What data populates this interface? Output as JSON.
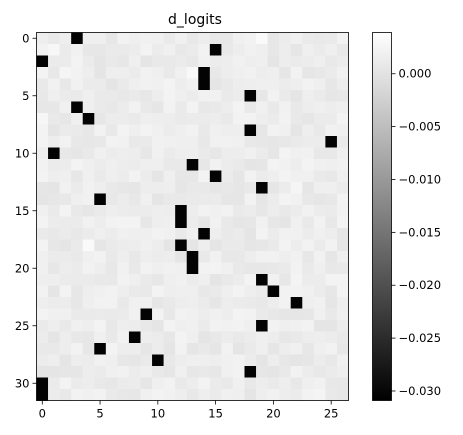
{
  "chart_data": {
    "type": "heatmap",
    "title": "d_logits",
    "rows": 32,
    "cols": 27,
    "colormap": "gray",
    "vmin": -0.0309,
    "vmax": 0.0039,
    "background_value_range": [
      -0.0012,
      0.0032
    ],
    "x_ticks": [
      0,
      5,
      10,
      15,
      20,
      25
    ],
    "y_ticks": [
      0,
      5,
      10,
      15,
      20,
      25,
      30
    ],
    "colorbar_ticks": [
      0.0,
      -0.005,
      -0.01,
      -0.015,
      -0.02,
      -0.025,
      -0.03
    ],
    "colorbar_tick_labels": [
      "0.000",
      "−0.005",
      "−0.010",
      "−0.015",
      "−0.020",
      "−0.025",
      "−0.030"
    ],
    "min_cells": [
      {
        "row": 0,
        "col": 3,
        "value": -0.0305
      },
      {
        "row": 1,
        "col": 15,
        "value": -0.0305
      },
      {
        "row": 2,
        "col": 0,
        "value": -0.0305
      },
      {
        "row": 3,
        "col": 14,
        "value": -0.0305
      },
      {
        "row": 4,
        "col": 14,
        "value": -0.0305
      },
      {
        "row": 5,
        "col": 18,
        "value": -0.0305
      },
      {
        "row": 6,
        "col": 3,
        "value": -0.0305
      },
      {
        "row": 7,
        "col": 4,
        "value": -0.0305
      },
      {
        "row": 8,
        "col": 18,
        "value": -0.0305
      },
      {
        "row": 9,
        "col": 25,
        "value": -0.0305
      },
      {
        "row": 10,
        "col": 1,
        "value": -0.0305
      },
      {
        "row": 11,
        "col": 13,
        "value": -0.0305
      },
      {
        "row": 12,
        "col": 15,
        "value": -0.0305
      },
      {
        "row": 13,
        "col": 19,
        "value": -0.0305
      },
      {
        "row": 14,
        "col": 5,
        "value": -0.0305
      },
      {
        "row": 15,
        "col": 12,
        "value": -0.0305
      },
      {
        "row": 16,
        "col": 12,
        "value": -0.0305
      },
      {
        "row": 17,
        "col": 14,
        "value": -0.0305
      },
      {
        "row": 18,
        "col": 12,
        "value": -0.0305
      },
      {
        "row": 19,
        "col": 13,
        "value": -0.0305
      },
      {
        "row": 20,
        "col": 13,
        "value": -0.0305
      },
      {
        "row": 21,
        "col": 19,
        "value": -0.0305
      },
      {
        "row": 22,
        "col": 20,
        "value": -0.0305
      },
      {
        "row": 23,
        "col": 22,
        "value": -0.0305
      },
      {
        "row": 24,
        "col": 9,
        "value": -0.0305
      },
      {
        "row": 25,
        "col": 19,
        "value": -0.0305
      },
      {
        "row": 26,
        "col": 8,
        "value": -0.0305
      },
      {
        "row": 27,
        "col": 5,
        "value": -0.0305
      },
      {
        "row": 28,
        "col": 10,
        "value": -0.0305
      },
      {
        "row": 29,
        "col": 18,
        "value": -0.0305
      },
      {
        "row": 30,
        "col": 0,
        "value": -0.0305
      },
      {
        "row": 31,
        "col": 0,
        "value": -0.0305
      }
    ],
    "bright_cells": [
      {
        "row": 0,
        "col": 19,
        "value": 0.0032
      },
      {
        "row": 1,
        "col": 1,
        "value": 0.0028
      },
      {
        "row": 3,
        "col": 13,
        "value": 0.003
      },
      {
        "row": 3,
        "col": 2,
        "value": 0.0026
      },
      {
        "row": 7,
        "col": 0,
        "value": 0.0027
      },
      {
        "row": 13,
        "col": 22,
        "value": 0.0025
      },
      {
        "row": 18,
        "col": 4,
        "value": 0.0032
      },
      {
        "row": 21,
        "col": 22,
        "value": 0.0024
      },
      {
        "row": 26,
        "col": 12,
        "value": 0.0022
      },
      {
        "row": 31,
        "col": 24,
        "value": 0.0024
      }
    ]
  }
}
